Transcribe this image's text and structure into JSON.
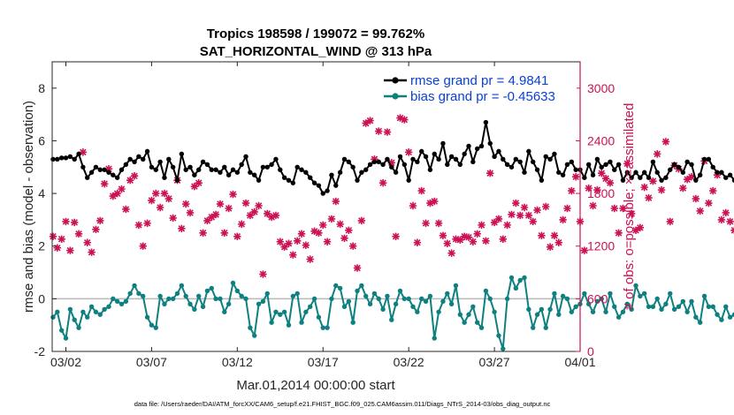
{
  "chart_data": {
    "type": "line",
    "title_line1": "Tropics 198598 / 199072 = 99.762%",
    "title_line2": "SAT_HORIZONTAL_WIND @ 313 hPa",
    "xlabel": "Mar.01,2014 00:00:00 start",
    "ylabel_left": "rmse and bias (model - observation)",
    "ylabel_right": "# of obs: o=possible; ×=assimilated",
    "footer": "data file: /Users/raeder/DAI/ATM_forcXX/CAM6_setup/f.e21.FHIST_BGC.f09_025.CAM6assim.011/Diags_NTrS_2014-03/obs_diag_output.nc",
    "xlim": [
      0.2,
      31
    ],
    "ylim_left": [
      -2,
      9
    ],
    "ylim_right": [
      0,
      3300
    ],
    "x_ticks": [
      1,
      6,
      11,
      16,
      21,
      26,
      31
    ],
    "x_tick_labels": [
      "03/02",
      "03/07",
      "03/12",
      "03/17",
      "03/22",
      "03/27",
      "04/01"
    ],
    "y_left_ticks": [
      -2,
      0,
      2,
      4,
      6,
      8
    ],
    "y_left_tick_labels": [
      "-2",
      "0",
      "2",
      "4",
      "6",
      "8"
    ],
    "y_right_ticks": [
      0,
      600,
      1200,
      1800,
      2400,
      3000
    ],
    "y_right_tick_labels": [
      "0",
      "600",
      "1200",
      "1800",
      "2400",
      "3000"
    ],
    "zero_line": 0,
    "colors": {
      "rmse": "#000000",
      "bias": "#0f8080",
      "obs": "#cc1155",
      "legend_text": "#0b3fd6",
      "zero_line": "#b8b8b8"
    },
    "series": [
      {
        "name": "rmse grand pr = 4.9841",
        "color": "#000000",
        "x_start": 0.25,
        "x_step": 0.25,
        "values": [
          5.3,
          5.3,
          5.35,
          5.35,
          5.4,
          5.3,
          5.5,
          5.0,
          4.6,
          4.8,
          5.0,
          4.9,
          4.9,
          4.8,
          4.7,
          4.6,
          4.9,
          5.1,
          5.3,
          5.2,
          5.4,
          5.3,
          5.6,
          5.0,
          4.9,
          5.2,
          4.6,
          5.3,
          5.0,
          4.5,
          5.5,
          4.9,
          5.0,
          4.7,
          4.9,
          5.2,
          5.1,
          4.9,
          4.9,
          4.8,
          5.0,
          4.7,
          4.9,
          4.8,
          5.1,
          5.4,
          4.8,
          4.7,
          4.5,
          5.0,
          5.0,
          5.1,
          5.3,
          4.9,
          4.6,
          4.5,
          4.4,
          5.0,
          4.9,
          4.8,
          4.6,
          4.4,
          4.3,
          4.0,
          4.1,
          4.7,
          4.3,
          4.8,
          5.3,
          5.2,
          5.0,
          4.5,
          4.8,
          4.9,
          5.1,
          5.2,
          5.2,
          5.1,
          5.3,
          5.0,
          4.8,
          5.4,
          5.1,
          4.5,
          5.3,
          5.2,
          5.6,
          5.4,
          4.9,
          5.5,
          5.3,
          5.9,
          5.1,
          5.4,
          5.3,
          5.1,
          5.5,
          5.8,
          5.2,
          5.7,
          5.8,
          6.7,
          5.9,
          5.4,
          5.6,
          5.3,
          5.1,
          5.0,
          5.3,
          5.2,
          4.8,
          5.6,
          5.2,
          4.9,
          4.5,
          5.4,
          5.3,
          5.5,
          4.8,
          4.7,
          5.1,
          5.2,
          4.9,
          4.9,
          4.6,
          5.1,
          4.7,
          5.3,
          5.0,
          5.1,
          5.2,
          4.9,
          5.1,
          4.5,
          4.8,
          4.6,
          4.8,
          4.6,
          4.8,
          4.6,
          5.2,
          4.8,
          4.5,
          4.6,
          4.9,
          5.1,
          5.0,
          4.8,
          5.2,
          5.1,
          4.5,
          4.7,
          5.3,
          5.3,
          5.0,
          4.8,
          4.8,
          4.6,
          4.7,
          4.5,
          4.8,
          5.1,
          5.5,
          5.1,
          5.0,
          5.0,
          4.9,
          4.9,
          4.9,
          5.0,
          4.9,
          5.0,
          4.9,
          5.3,
          4.8,
          5.1,
          4.9,
          5.5,
          5.0,
          5.1
        ]
      },
      {
        "name": "bias grand pr = -0.45633",
        "color": "#0f8080",
        "x_start": 0.25,
        "x_step": 0.25,
        "values": [
          -0.7,
          -0.5,
          -1.2,
          -1.5,
          -0.4,
          -0.8,
          -1.1,
          -0.5,
          -0.7,
          -0.3,
          -0.5,
          -0.6,
          -0.4,
          -0.3,
          0.0,
          -0.1,
          -0.2,
          -0.1,
          0.2,
          0.5,
          0.2,
          0.1,
          -0.7,
          -1.0,
          -1.1,
          0.1,
          -0.2,
          0.0,
          0.0,
          0.2,
          0.5,
          0.1,
          -0.2,
          -0.4,
          0.1,
          -0.3,
          0.3,
          0.4,
          0.0,
          0.0,
          -0.5,
          -0.2,
          0.6,
          0.3,
          0.1,
          0.0,
          -1.1,
          -1.4,
          -0.2,
          -0.1,
          0.2,
          -0.9,
          -0.5,
          -0.6,
          -0.5,
          -1.0,
          0.1,
          0.2,
          -0.9,
          -0.5,
          -0.3,
          0.0,
          -0.7,
          -1.1,
          -1.1,
          0.0,
          0.5,
          0.4,
          -0.3,
          -0.1,
          -0.9,
          0.3,
          0.5,
          0.1,
          -0.2,
          0.2,
          0.0,
          -0.4,
          0.1,
          -0.8,
          -0.2,
          0.3,
          0.0,
          0.0,
          -0.3,
          -0.5,
          0.0,
          -0.1,
          0.1,
          -1.5,
          -0.5,
          -0.1,
          0.2,
          -0.2,
          0.5,
          -0.6,
          -0.9,
          -0.6,
          -0.3,
          -0.9,
          -1.1,
          0.3,
          0.0,
          -0.5,
          -1.4,
          -1.9,
          0.0,
          0.8,
          0.4,
          0.7,
          0.8,
          -0.4,
          -1.1,
          -0.6,
          -0.4,
          -1.1,
          -0.4,
          0.2,
          -0.6,
          0.1,
          0.0,
          -0.5,
          -0.3,
          -0.2,
          0.2,
          -0.2,
          -0.5,
          -0.1,
          0.0,
          -0.5,
          0.2,
          -0.3,
          -0.7,
          -0.5,
          -0.2,
          -0.4,
          0.5,
          0.1,
          0.2,
          -0.3,
          -0.3,
          0.0,
          -0.4,
          -0.2,
          0.2,
          -0.4,
          -0.3,
          -0.1,
          -0.5,
          -0.1,
          -0.7,
          -0.9,
          0.1,
          -0.3,
          -0.3,
          -0.6,
          -0.8,
          -0.3,
          -0.7,
          -0.6,
          -0.5,
          -1.0,
          -1.1,
          0.0,
          -0.3,
          -0.6,
          -0.5,
          -0.7,
          -0.8,
          -0.9,
          -0.1,
          -0.6,
          -0.8,
          -1.1,
          -0.9,
          -1.0,
          -1.1,
          0.3,
          -1.1,
          -1.4,
          -1.3,
          -1.2,
          -1.5,
          -1.4,
          -1.4,
          -0.8
        ]
      },
      {
        "name": "obs assimilated",
        "color": "#cc1155",
        "axis": "right",
        "marker": "x",
        "x_start": 0.25,
        "x_step": 0.25,
        "values": [
          1310,
          1180,
          1280,
          1480,
          1150,
          1470,
          1340,
          2270,
          1240,
          1130,
          1390,
          1490,
          1910,
          2080,
          1770,
          1800,
          1850,
          1620,
          1950,
          2000,
          1440,
          1200,
          1460,
          1720,
          1800,
          1640,
          1800,
          1740,
          1520,
          1950,
          1400,
          1680,
          1580,
          1880,
          1920,
          1350,
          1490,
          1530,
          1560,
          1680,
          1350,
          1630,
          1790,
          1310,
          1450,
          1690,
          1550,
          1590,
          1660,
          880,
          1570,
          1530,
          1550,
          1250,
          1190,
          1230,
          1100,
          1260,
          1340,
          1210,
          1050,
          1370,
          1350,
          1440,
          1250,
          1510,
          1710,
          1450,
          1290,
          1380,
          1200,
          950,
          1490,
          2600,
          2630,
          2190,
          2510,
          1920,
          2500,
          2150,
          1310,
          2660,
          2640,
          2270,
          1660,
          1240,
          1830,
          1460,
          1690,
          1710,
          1460,
          1320,
          1230,
          1120,
          1280,
          1270,
          1310,
          1300,
          1250,
          1340,
          1440,
          1260,
          2030,
          1470,
          1510,
          1280,
          1440,
          1560,
          1690,
          1550,
          1640,
          1550,
          1480,
          1610,
          1320,
          1650,
          1190,
          1320,
          1240,
          1500,
          1630,
          1830,
          1990,
          1480,
          1150,
          1860,
          1660,
          1840,
          2030,
          1970,
          1920,
          1630,
          1350,
          1630,
          2140,
          1570,
          1380,
          1410,
          1870,
          1750,
          1940,
          2250,
          1840,
          2390,
          1480,
          2120,
          2080,
          1860,
          1960,
          1990,
          1740,
          1600,
          2170,
          1690,
          1830,
          2010,
          1500,
          1580,
          1480,
          1380,
          1750,
          1530,
          1750,
          1240,
          1320,
          1220,
          1680,
          1620,
          1630,
          1700,
          1880,
          1720,
          1410,
          1480,
          1550,
          1450,
          1560,
          1640,
          1840,
          1460,
          1790,
          1410,
          1710,
          1240,
          1390,
          1670,
          1670
        ]
      }
    ]
  }
}
